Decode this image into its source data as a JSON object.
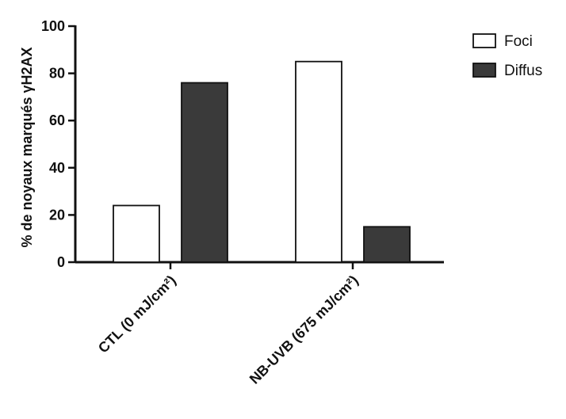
{
  "chart_data": {
    "type": "bar",
    "title": "",
    "xlabel": "",
    "ylabel": "% de noyaux marqués γH2AX",
    "ylim": [
      0,
      100
    ],
    "yticks": [
      0,
      20,
      40,
      60,
      80,
      100
    ],
    "categories": [
      "CTL (0 mJ/cm²)",
      "NB-UVB (675 mJ/cm²)"
    ],
    "series": [
      {
        "name": "Foci",
        "values": [
          24,
          85
        ],
        "color": "#ffffff"
      },
      {
        "name": "Diffus",
        "values": [
          76,
          15
        ],
        "color": "#3a3a3a"
      }
    ],
    "legend_position": "top-right",
    "grid": false
  }
}
